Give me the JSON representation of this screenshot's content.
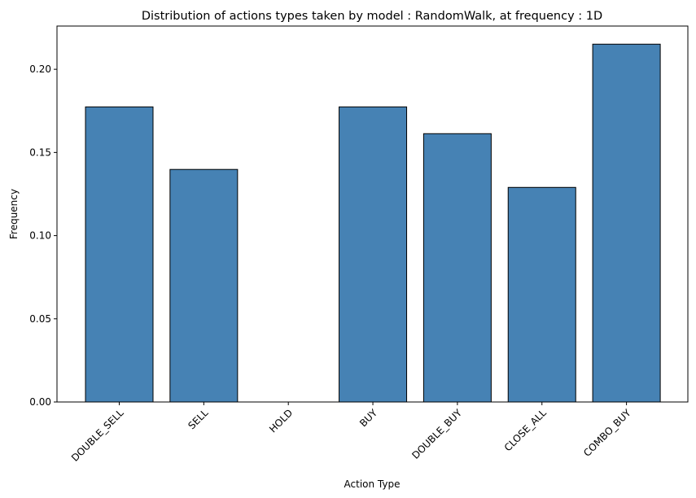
{
  "chart_data": {
    "type": "bar",
    "title": "Distribution of actions types taken by model : RandomWalk, at frequency : 1D",
    "xlabel": "Action Type",
    "ylabel": "Frequency",
    "categories": [
      "DOUBLE_SELL",
      "SELL",
      "HOLD",
      "BUY",
      "DOUBLE_BUY",
      "CLOSE_ALL",
      "COMBO_BUY"
    ],
    "values": [
      0.1774,
      0.1398,
      0.0,
      0.1774,
      0.1613,
      0.129,
      0.2151
    ],
    "ylim": [
      0,
      0.226
    ],
    "yticks": [
      0.0,
      0.05,
      0.1,
      0.15,
      0.2
    ],
    "ytick_labels": [
      "0.00",
      "0.05",
      "0.10",
      "0.15",
      "0.20"
    ],
    "grid": false,
    "colors": {
      "bar_fill": "#4682b4",
      "bar_edge": "#000000"
    }
  }
}
